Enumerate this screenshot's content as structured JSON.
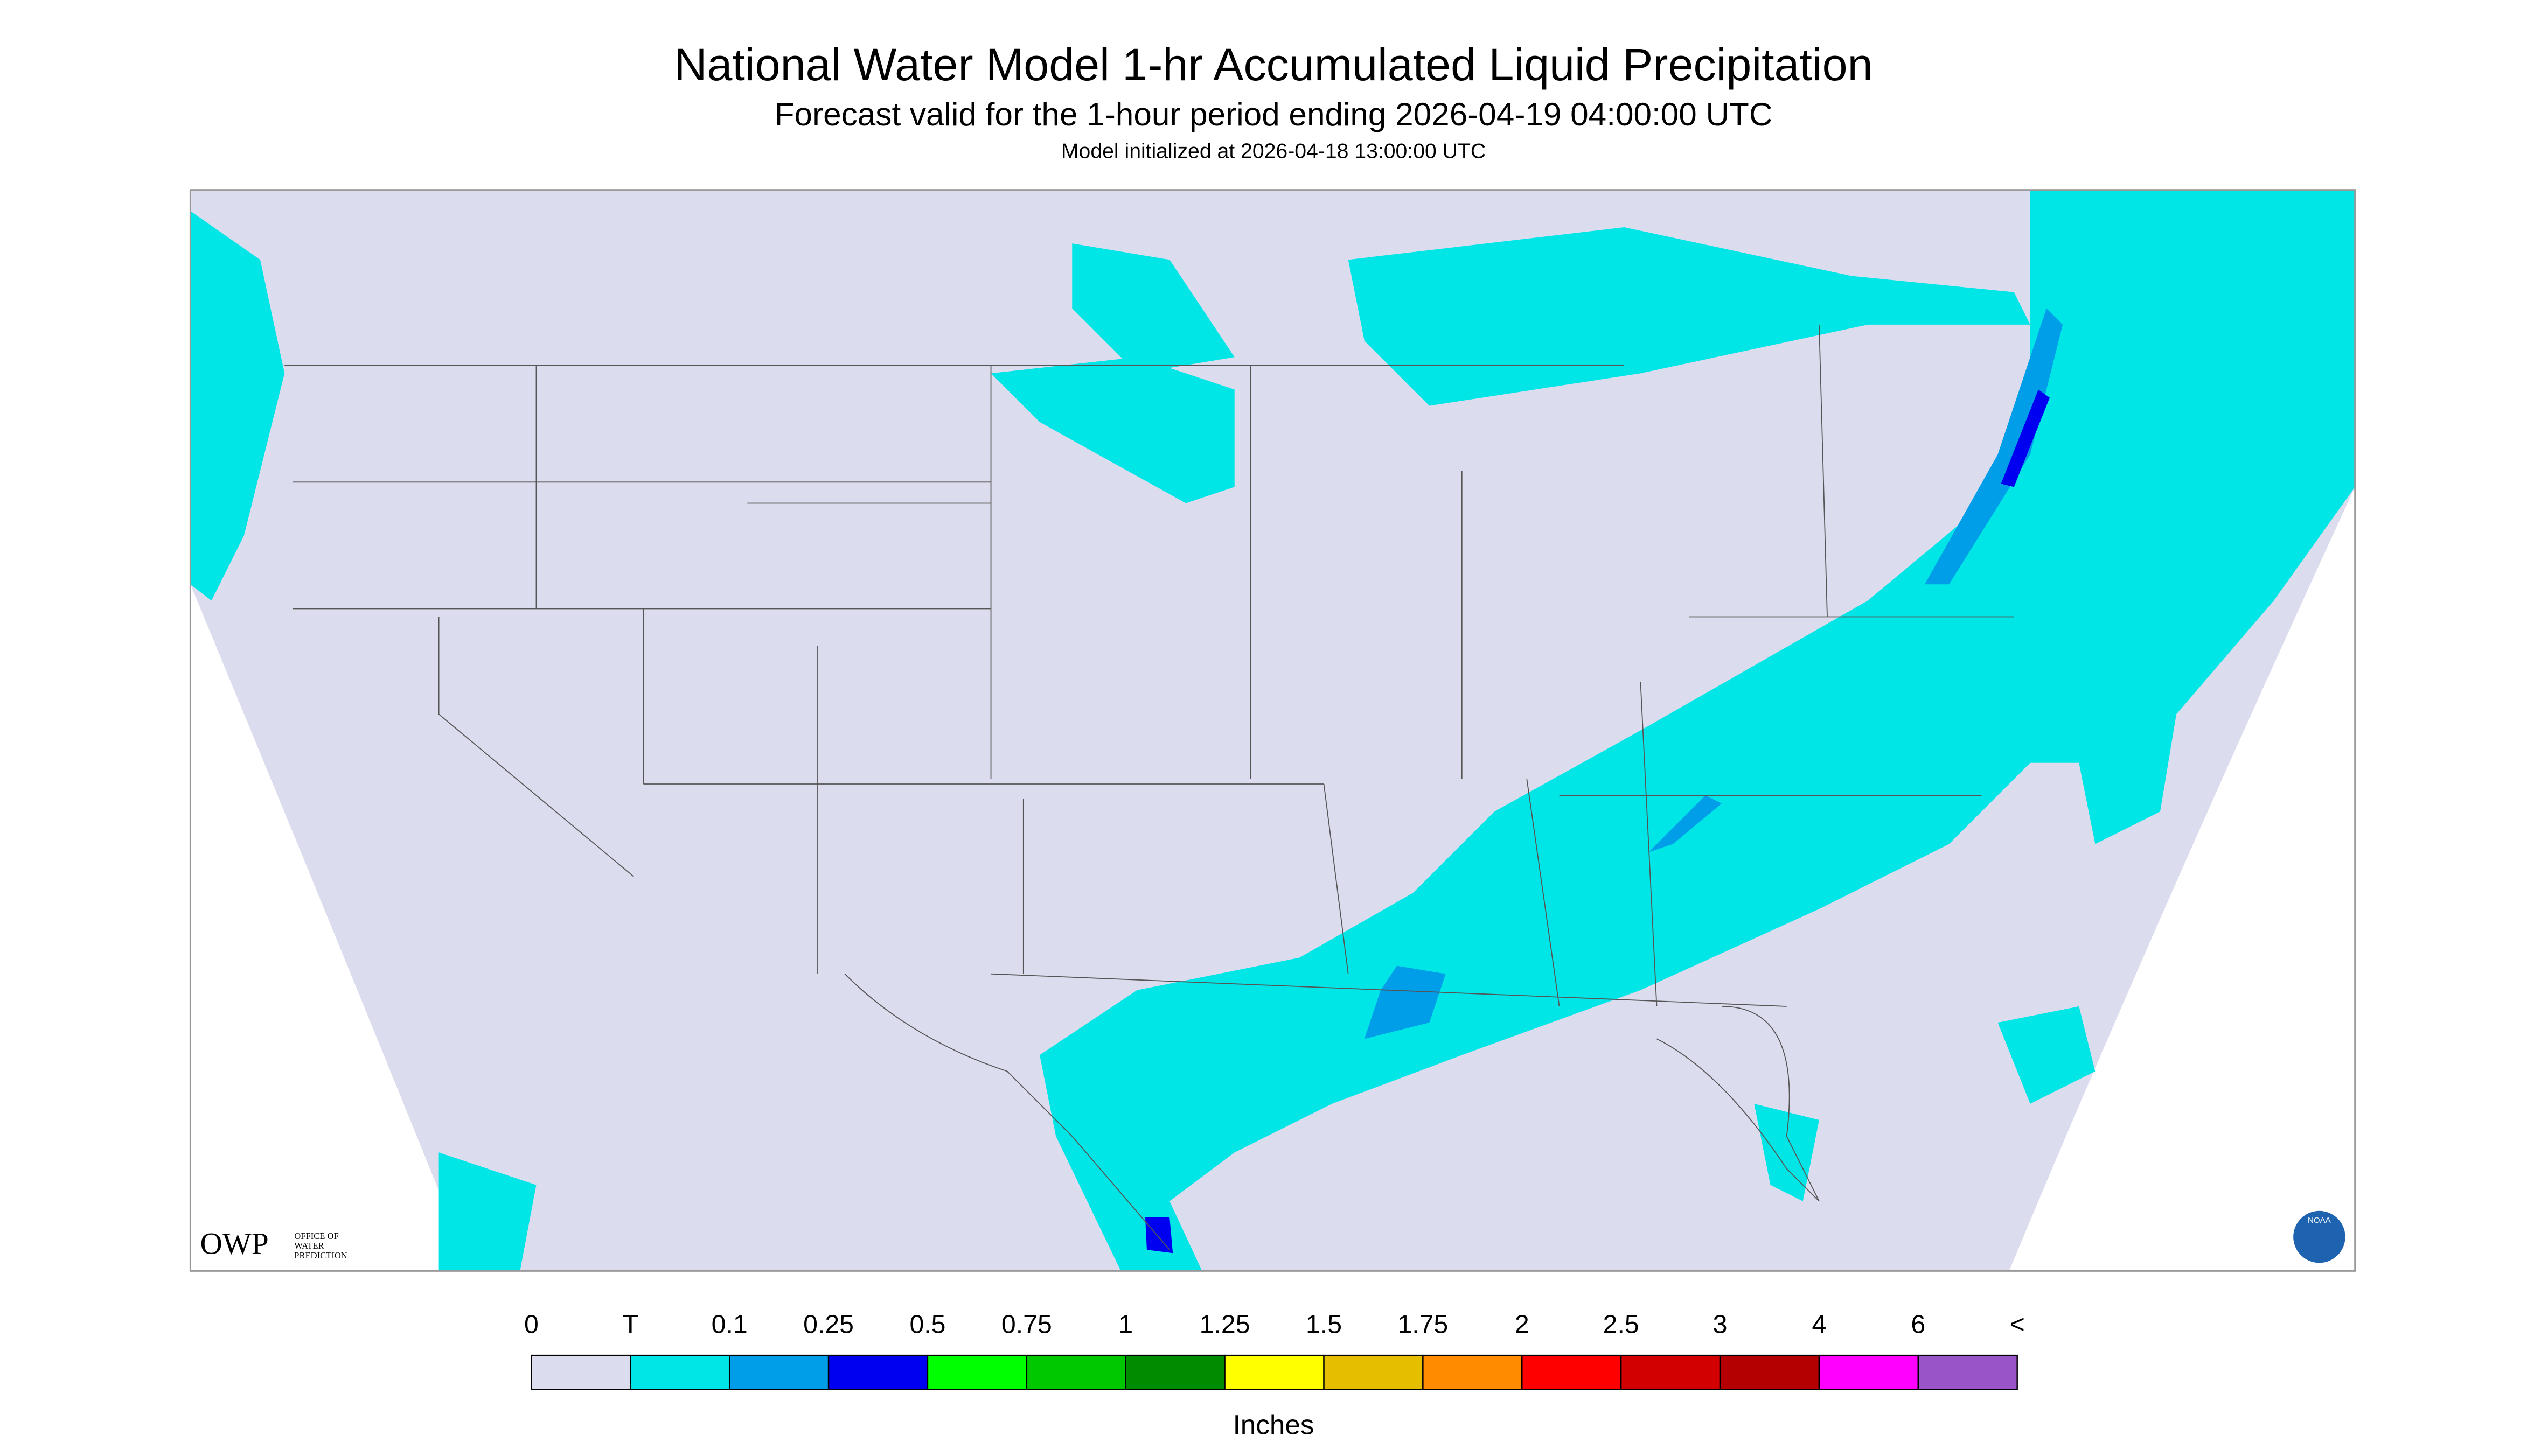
{
  "header": {
    "title": "National Water Model 1-hr Accumulated Liquid Precipitation",
    "subtitle": "Forecast valid for the 1-hour period ending 2026-04-19 04:00:00 UTC",
    "init": "Model initialized at 2026-04-18 13:00:00 UTC"
  },
  "legend": {
    "labels": [
      "0",
      "T",
      "0.1",
      "0.25",
      "0.5",
      "0.75",
      "1",
      "1.25",
      "1.5",
      "1.75",
      "2",
      "2.5",
      "3",
      "4",
      "6",
      "<"
    ],
    "colors": [
      "#dcdcef",
      "#00e6e6",
      "#009ee8",
      "#0000f0",
      "#00ff00",
      "#00c800",
      "#008c00",
      "#ffff00",
      "#e6be00",
      "#ff8c00",
      "#ff0000",
      "#d20000",
      "#b40000",
      "#ff00ff",
      "#9955c8"
    ],
    "unit": "Inches"
  },
  "logo": {
    "owp": "OWP",
    "owp_text": [
      "OFFICE OF",
      "WATER",
      "PREDICTION"
    ],
    "noaa": "NOAA"
  }
}
